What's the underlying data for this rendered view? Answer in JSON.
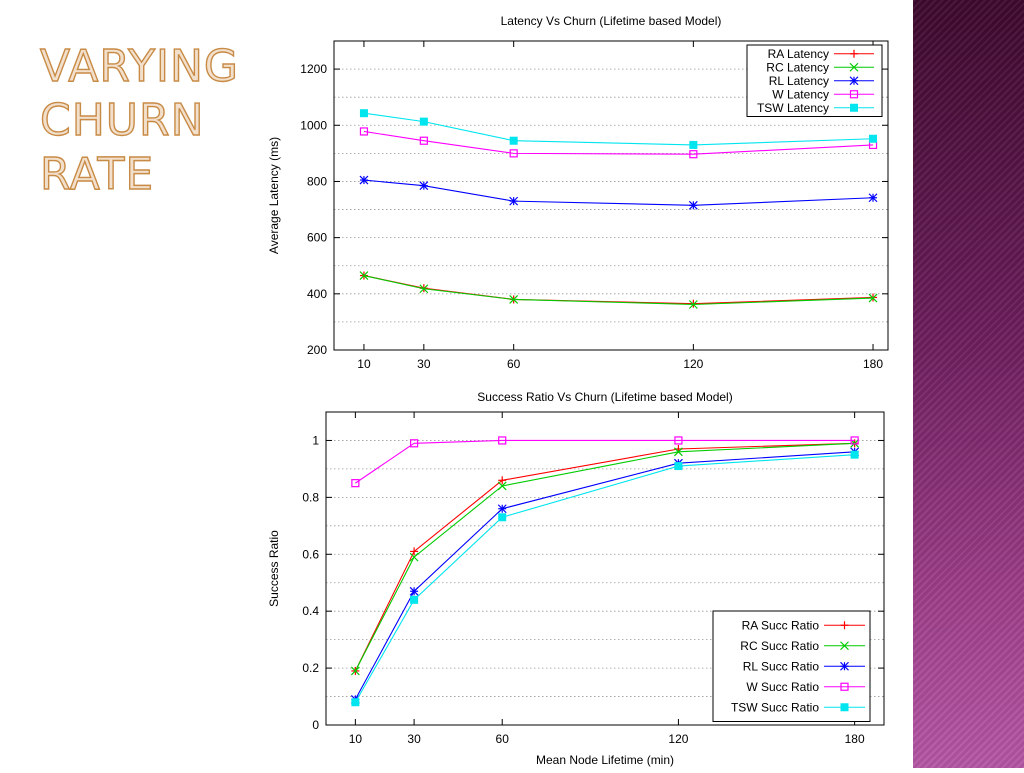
{
  "slide": {
    "title_lines": [
      "VARYING",
      "CHURN",
      "RATE"
    ],
    "title_colors": {
      "fill": "#f2e0cc",
      "stroke": "#c88b46"
    },
    "accent_bar_colors": [
      "#3e0a2e",
      "#b657a6"
    ]
  },
  "chart_data": [
    {
      "type": "line",
      "title": "Latency Vs Churn (Lifetime based Model)",
      "xlabel": "",
      "ylabel": "Average Latency (ms)",
      "x": [
        10,
        30,
        60,
        120,
        180
      ],
      "x_tick_labels": [
        "10",
        "30",
        "60",
        "120",
        "180"
      ],
      "xlim": [
        0,
        185
      ],
      "ylim": [
        200,
        1300
      ],
      "y_ticks": [
        200,
        400,
        600,
        800,
        1000,
        1200
      ],
      "grid": "horizontal dotted",
      "legend_position": "top-right",
      "series": [
        {
          "name": "RA Latency",
          "color": "#ff0000",
          "marker": "plus",
          "values": [
            465,
            420,
            380,
            365,
            387
          ]
        },
        {
          "name": "RC Latency",
          "color": "#00cc00",
          "marker": "cross",
          "values": [
            465,
            418,
            380,
            362,
            385
          ]
        },
        {
          "name": "RL Latency",
          "color": "#0000ff",
          "marker": "star",
          "values": [
            805,
            785,
            730,
            715,
            742
          ]
        },
        {
          "name": "W Latency",
          "color": "#ff00ff",
          "marker": "open-square",
          "values": [
            978,
            945,
            900,
            897,
            930
          ]
        },
        {
          "name": "TSW Latency",
          "color": "#00e5ee",
          "marker": "filled-square",
          "values": [
            1043,
            1013,
            945,
            930,
            952
          ]
        }
      ]
    },
    {
      "type": "line",
      "title": "Success Ratio Vs Churn (Lifetime based Model)",
      "xlabel": "Mean Node Lifetime (min)",
      "ylabel": "Success Ratio",
      "x": [
        10,
        30,
        60,
        120,
        180
      ],
      "x_tick_labels": [
        "10",
        "30",
        "60",
        "120",
        "180"
      ],
      "xlim": [
        0,
        190
      ],
      "ylim": [
        0,
        1.1
      ],
      "y_ticks": [
        0,
        0.2,
        0.4,
        0.6,
        0.8,
        1
      ],
      "grid": "horizontal dotted",
      "legend_position": "bottom-right",
      "series": [
        {
          "name": "RA Succ Ratio",
          "color": "#ff0000",
          "marker": "plus",
          "values": [
            0.19,
            0.61,
            0.86,
            0.97,
            0.99
          ]
        },
        {
          "name": "RC Succ Ratio",
          "color": "#00cc00",
          "marker": "cross",
          "values": [
            0.19,
            0.59,
            0.84,
            0.96,
            0.99
          ]
        },
        {
          "name": "RL Succ Ratio",
          "color": "#0000ff",
          "marker": "star",
          "values": [
            0.09,
            0.47,
            0.76,
            0.92,
            0.96
          ]
        },
        {
          "name": "W Succ Ratio",
          "color": "#ff00ff",
          "marker": "open-square",
          "values": [
            0.85,
            0.99,
            1.0,
            1.0,
            1.0
          ]
        },
        {
          "name": "TSW Succ Ratio",
          "color": "#00e5ee",
          "marker": "filled-square",
          "values": [
            0.08,
            0.44,
            0.73,
            0.91,
            0.95
          ]
        }
      ]
    }
  ]
}
